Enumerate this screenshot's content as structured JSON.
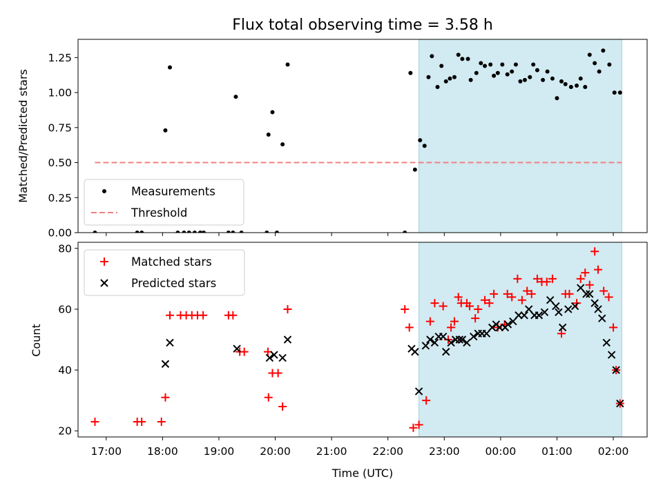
{
  "chart_data": [
    {
      "type": "scatter",
      "title": "Flux total observing time = 3.58 h",
      "xlabel": "",
      "ylabel": "Matched/Predicted stars",
      "xlim": [
        16.5,
        26.6
      ],
      "ylim": [
        0,
        1.38
      ],
      "yticks": [
        0.0,
        0.25,
        0.5,
        0.75,
        1.0,
        1.25
      ],
      "ytick_labels": [
        "0.00",
        "0.25",
        "0.50",
        "0.75",
        "1.00",
        "1.25"
      ],
      "highlight_span": {
        "x": [
          22.55,
          26.15
        ],
        "color": "#add8e6"
      },
      "legend_position": "lower-left",
      "series": [
        {
          "name": "Measurements",
          "marker": "dot",
          "color": "#000000",
          "points": [
            [
              16.8,
              0
            ],
            [
              17.55,
              0
            ],
            [
              17.63,
              0
            ],
            [
              18.05,
              0.73
            ],
            [
              18.13,
              1.18
            ],
            [
              18.27,
              0
            ],
            [
              18.38,
              0
            ],
            [
              18.47,
              0
            ],
            [
              18.57,
              0
            ],
            [
              18.67,
              0
            ],
            [
              18.73,
              0
            ],
            [
              19.17,
              0
            ],
            [
              19.25,
              0
            ],
            [
              19.3,
              0.97
            ],
            [
              19.4,
              0
            ],
            [
              19.85,
              0
            ],
            [
              19.88,
              0.7
            ],
            [
              19.95,
              0.86
            ],
            [
              20.03,
              0
            ],
            [
              20.13,
              0.63
            ],
            [
              20.22,
              1.2
            ],
            [
              22.3,
              0
            ],
            [
              22.4,
              1.14
            ],
            [
              22.48,
              0.45
            ],
            [
              22.57,
              0.66
            ],
            [
              22.65,
              0.62
            ],
            [
              22.72,
              1.11
            ],
            [
              22.78,
              1.26
            ],
            [
              22.88,
              1.04
            ],
            [
              22.95,
              1.19
            ],
            [
              23.03,
              1.08
            ],
            [
              23.1,
              1.1
            ],
            [
              23.18,
              1.11
            ],
            [
              23.25,
              1.27
            ],
            [
              23.32,
              1.24
            ],
            [
              23.42,
              1.24
            ],
            [
              23.47,
              1.09
            ],
            [
              23.57,
              1.14
            ],
            [
              23.65,
              1.21
            ],
            [
              23.72,
              1.19
            ],
            [
              23.82,
              1.2
            ],
            [
              23.88,
              1.12
            ],
            [
              23.95,
              1.14
            ],
            [
              24.03,
              1.2
            ],
            [
              24.12,
              1.13
            ],
            [
              24.2,
              1.15
            ],
            [
              24.27,
              1.2
            ],
            [
              24.35,
              1.08
            ],
            [
              24.43,
              1.09
            ],
            [
              24.52,
              1.11
            ],
            [
              24.58,
              1.2
            ],
            [
              24.65,
              1.16
            ],
            [
              24.75,
              1.09
            ],
            [
              24.83,
              1.15
            ],
            [
              24.92,
              1.1
            ],
            [
              25.0,
              0.96
            ],
            [
              25.08,
              1.08
            ],
            [
              25.15,
              1.06
            ],
            [
              25.25,
              1.04
            ],
            [
              25.35,
              1.05
            ],
            [
              25.42,
              1.1
            ],
            [
              25.5,
              1.04
            ],
            [
              25.58,
              1.27
            ],
            [
              25.67,
              1.21
            ],
            [
              25.75,
              1.15
            ],
            [
              25.82,
              1.3
            ],
            [
              25.93,
              1.2
            ],
            [
              26.02,
              1.0
            ],
            [
              26.12,
              1.0
            ]
          ]
        },
        {
          "name": "Threshold",
          "marker": "dashed-line",
          "color": "#f08080",
          "x": [
            16.8,
            26.15
          ],
          "y": 0.5
        }
      ]
    },
    {
      "type": "scatter",
      "title": "",
      "xlabel": "Time (UTC)",
      "ylabel": "Count",
      "xlim": [
        16.5,
        26.6
      ],
      "ylim": [
        18,
        82
      ],
      "yticks": [
        20,
        40,
        60,
        80
      ],
      "ytick_labels": [
        "20",
        "40",
        "60",
        "80"
      ],
      "xticks": [
        17,
        18,
        19,
        20,
        21,
        22,
        23,
        24,
        25,
        26
      ],
      "xtick_labels": [
        "17:00",
        "18:00",
        "19:00",
        "20:00",
        "21:00",
        "22:00",
        "23:00",
        "00:00",
        "01:00",
        "02:00"
      ],
      "highlight_span": {
        "x": [
          22.55,
          26.15
        ],
        "color": "#add8e6"
      },
      "legend_position": "upper-left",
      "series": [
        {
          "name": "Matched stars",
          "marker": "plus",
          "color": "#ff0000",
          "points": [
            [
              16.8,
              23
            ],
            [
              17.55,
              23
            ],
            [
              17.63,
              23
            ],
            [
              17.98,
              23
            ],
            [
              18.05,
              31
            ],
            [
              18.13,
              58
            ],
            [
              18.32,
              58
            ],
            [
              18.42,
              58
            ],
            [
              18.52,
              58
            ],
            [
              18.62,
              58
            ],
            [
              18.72,
              58
            ],
            [
              19.17,
              58
            ],
            [
              19.25,
              58
            ],
            [
              19.37,
              46
            ],
            [
              19.45,
              46
            ],
            [
              19.87,
              46
            ],
            [
              19.88,
              31
            ],
            [
              19.95,
              39
            ],
            [
              20.05,
              39
            ],
            [
              20.13,
              28
            ],
            [
              20.22,
              60
            ],
            [
              22.3,
              60
            ],
            [
              22.38,
              54
            ],
            [
              22.45,
              21
            ],
            [
              22.55,
              22
            ],
            [
              22.68,
              30
            ],
            [
              22.75,
              56
            ],
            [
              22.83,
              62
            ],
            [
              22.98,
              61
            ],
            [
              23.07,
              50
            ],
            [
              23.12,
              54
            ],
            [
              23.18,
              56
            ],
            [
              23.25,
              64
            ],
            [
              23.3,
              62
            ],
            [
              23.4,
              62
            ],
            [
              23.45,
              61
            ],
            [
              23.55,
              57
            ],
            [
              23.6,
              60
            ],
            [
              23.72,
              63
            ],
            [
              23.8,
              62
            ],
            [
              23.88,
              65
            ],
            [
              23.95,
              54
            ],
            [
              24.07,
              55
            ],
            [
              24.12,
              65
            ],
            [
              24.2,
              64
            ],
            [
              24.3,
              70
            ],
            [
              24.38,
              63
            ],
            [
              24.47,
              66
            ],
            [
              24.55,
              65
            ],
            [
              24.65,
              70
            ],
            [
              24.73,
              69
            ],
            [
              24.82,
              69
            ],
            [
              24.92,
              70
            ],
            [
              25.08,
              52
            ],
            [
              25.15,
              65
            ],
            [
              25.22,
              65
            ],
            [
              25.35,
              62
            ],
            [
              25.42,
              70
            ],
            [
              25.5,
              72
            ],
            [
              25.58,
              68
            ],
            [
              25.67,
              79
            ],
            [
              25.73,
              73
            ],
            [
              25.83,
              66
            ],
            [
              25.92,
              64
            ],
            [
              26.0,
              54
            ],
            [
              26.05,
              40
            ],
            [
              26.12,
              29
            ]
          ]
        },
        {
          "name": "Predicted stars",
          "marker": "cross",
          "color": "#000000",
          "points": [
            [
              18.05,
              42
            ],
            [
              18.13,
              49
            ],
            [
              19.32,
              47
            ],
            [
              19.9,
              44
            ],
            [
              19.98,
              45
            ],
            [
              20.13,
              44
            ],
            [
              20.22,
              50
            ],
            [
              22.42,
              47
            ],
            [
              22.48,
              46
            ],
            [
              22.55,
              33
            ],
            [
              22.67,
              48
            ],
            [
              22.75,
              50
            ],
            [
              22.83,
              49
            ],
            [
              22.9,
              51
            ],
            [
              22.98,
              51
            ],
            [
              23.03,
              46
            ],
            [
              23.12,
              49
            ],
            [
              23.2,
              50
            ],
            [
              23.27,
              50
            ],
            [
              23.32,
              50
            ],
            [
              23.4,
              49
            ],
            [
              23.52,
              51
            ],
            [
              23.6,
              52
            ],
            [
              23.67,
              52
            ],
            [
              23.75,
              52
            ],
            [
              23.85,
              54
            ],
            [
              23.92,
              55
            ],
            [
              23.98,
              54
            ],
            [
              24.08,
              54
            ],
            [
              24.13,
              55
            ],
            [
              24.22,
              56
            ],
            [
              24.32,
              58
            ],
            [
              24.42,
              58
            ],
            [
              24.5,
              60
            ],
            [
              24.6,
              58
            ],
            [
              24.68,
              58
            ],
            [
              24.78,
              59
            ],
            [
              24.88,
              63
            ],
            [
              24.98,
              61
            ],
            [
              25.03,
              59
            ],
            [
              25.1,
              54
            ],
            [
              25.2,
              60
            ],
            [
              25.32,
              61
            ],
            [
              25.42,
              67
            ],
            [
              25.52,
              65
            ],
            [
              25.58,
              65
            ],
            [
              25.67,
              62
            ],
            [
              25.73,
              60
            ],
            [
              25.8,
              57
            ],
            [
              25.88,
              49
            ],
            [
              25.97,
              45
            ],
            [
              26.05,
              40
            ],
            [
              26.12,
              29
            ]
          ]
        }
      ]
    }
  ]
}
